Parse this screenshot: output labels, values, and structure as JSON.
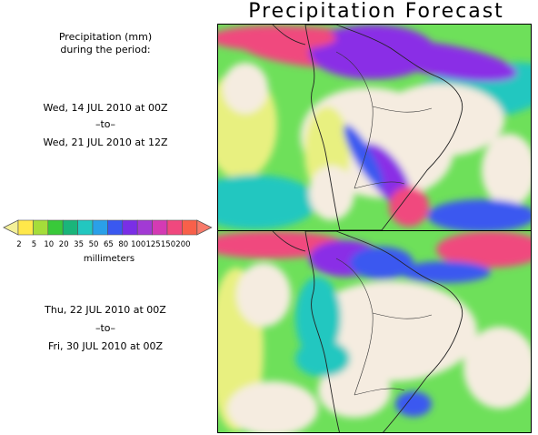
{
  "title": "Precipitation Forecast",
  "caption": {
    "line1": "Precipitation (mm)",
    "line2": "during the period:"
  },
  "period1": {
    "start": "Wed, 14 JUL 2010 at 00Z",
    "to": "–to–",
    "end": "Wed, 21 JUL 2010 at 12Z"
  },
  "period2": {
    "start": "Thu, 22 JUL 2010 at 00Z",
    "to": "–to–",
    "end": "Fri, 30 JUL 2010 at 00Z"
  },
  "legend": {
    "units": "millimeters",
    "thresholds": [
      "2",
      "5",
      "10",
      "20",
      "35",
      "50",
      "65",
      "80",
      "100",
      "125",
      "150",
      "200"
    ],
    "colors": [
      "#ffe84a",
      "#a5dd3a",
      "#39c93a",
      "#1ab57a",
      "#22c7c0",
      "#2aa0e8",
      "#3a58f0",
      "#7a2ee6",
      "#a23ad4",
      "#d43ab4",
      "#f0487e",
      "#f8604a"
    ],
    "low_color": "#f4f098",
    "high_color": "#f87a6a"
  },
  "map_colors": {
    "land_dry": "#f5ece0",
    "light": "#e8f080",
    "green": "#6ee05a",
    "cyan": "#22c7c0",
    "blue": "#3a58f0",
    "purple": "#8a2ee6",
    "magenta": "#f0487e"
  }
}
